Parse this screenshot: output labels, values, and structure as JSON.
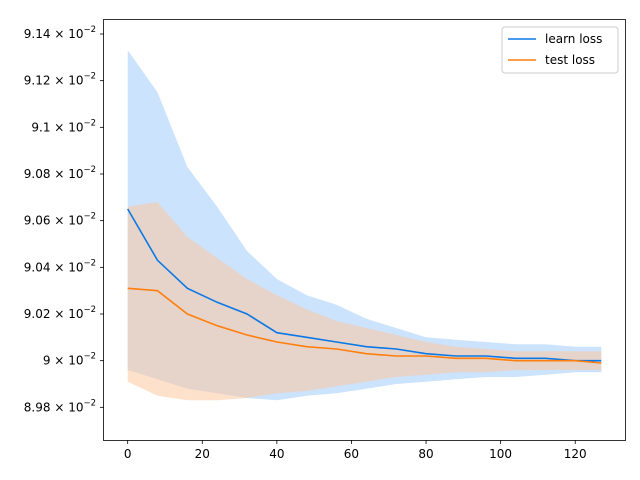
{
  "chart_data": {
    "type": "line",
    "title": "",
    "xlabel": "",
    "ylabel": "",
    "xlim": [
      -6.35,
      133.35
    ],
    "ylim": [
      0.08966,
      0.09146
    ],
    "x_ticks": [
      0,
      20,
      40,
      60,
      80,
      100,
      120
    ],
    "x_tick_labels": [
      "0",
      "20",
      "40",
      "60",
      "80",
      "100",
      "120"
    ],
    "y_ticks": [
      0.0898,
      0.09,
      0.0902,
      0.0904,
      0.0906,
      0.0908,
      0.091,
      0.0912,
      0.0914
    ],
    "y_tick_labels": [
      {
        "mantissa": "8.98",
        "base": "10",
        "exp": "−2"
      },
      {
        "mantissa": "9",
        "base": "10",
        "exp": "−2"
      },
      {
        "mantissa": "9.02",
        "base": "10",
        "exp": "−2"
      },
      {
        "mantissa": "9.04",
        "base": "10",
        "exp": "−2"
      },
      {
        "mantissa": "9.06",
        "base": "10",
        "exp": "−2"
      },
      {
        "mantissa": "9.08",
        "base": "10",
        "exp": "−2"
      },
      {
        "mantissa": "9.1",
        "base": "10",
        "exp": "−2"
      },
      {
        "mantissa": "9.12",
        "base": "10",
        "exp": "−2"
      },
      {
        "mantissa": "9.14",
        "base": "10",
        "exp": "−2"
      }
    ],
    "legend_position": "top-right",
    "grid": false,
    "x": [
      0,
      8,
      16,
      24,
      32,
      40,
      48,
      56,
      64,
      72,
      80,
      88,
      96,
      104,
      112,
      120,
      127
    ],
    "series": [
      {
        "name": "learn loss",
        "color": "#0a78e6",
        "band_color": "#a8d0fb",
        "values": [
          0.09065,
          0.09043,
          0.09031,
          0.09025,
          0.0902,
          0.09012,
          0.0901,
          0.09008,
          0.09006,
          0.09005,
          0.09003,
          0.09002,
          0.09002,
          0.09001,
          0.09001,
          0.09,
          0.09
        ],
        "upper": [
          0.09133,
          0.09115,
          0.09083,
          0.09066,
          0.09047,
          0.09035,
          0.09028,
          0.09024,
          0.09018,
          0.09014,
          0.0901,
          0.09009,
          0.09008,
          0.09007,
          0.09007,
          0.09006,
          0.09006
        ],
        "lower": [
          0.08996,
          0.08992,
          0.08988,
          0.08986,
          0.08984,
          0.08983,
          0.08985,
          0.08986,
          0.08988,
          0.0899,
          0.08991,
          0.08992,
          0.08993,
          0.08993,
          0.08994,
          0.08995,
          0.08995
        ]
      },
      {
        "name": "test loss",
        "color": "#ff7f0e",
        "band_color": "#fdc9a0",
        "values": [
          0.09031,
          0.0903,
          0.0902,
          0.09015,
          0.09011,
          0.09008,
          0.09006,
          0.09005,
          0.09003,
          0.09002,
          0.09002,
          0.09001,
          0.09001,
          0.09,
          0.09,
          0.09,
          0.08999
        ],
        "upper": [
          0.09066,
          0.09068,
          0.09053,
          0.09044,
          0.09035,
          0.09028,
          0.09022,
          0.09017,
          0.09014,
          0.09011,
          0.09008,
          0.09006,
          0.09005,
          0.09004,
          0.09004,
          0.09004,
          0.09004
        ],
        "lower": [
          0.08991,
          0.08985,
          0.08983,
          0.08983,
          0.08984,
          0.08986,
          0.08987,
          0.08989,
          0.08991,
          0.08993,
          0.08994,
          0.08995,
          0.08995,
          0.08996,
          0.08996,
          0.08996,
          0.08996
        ]
      }
    ]
  }
}
